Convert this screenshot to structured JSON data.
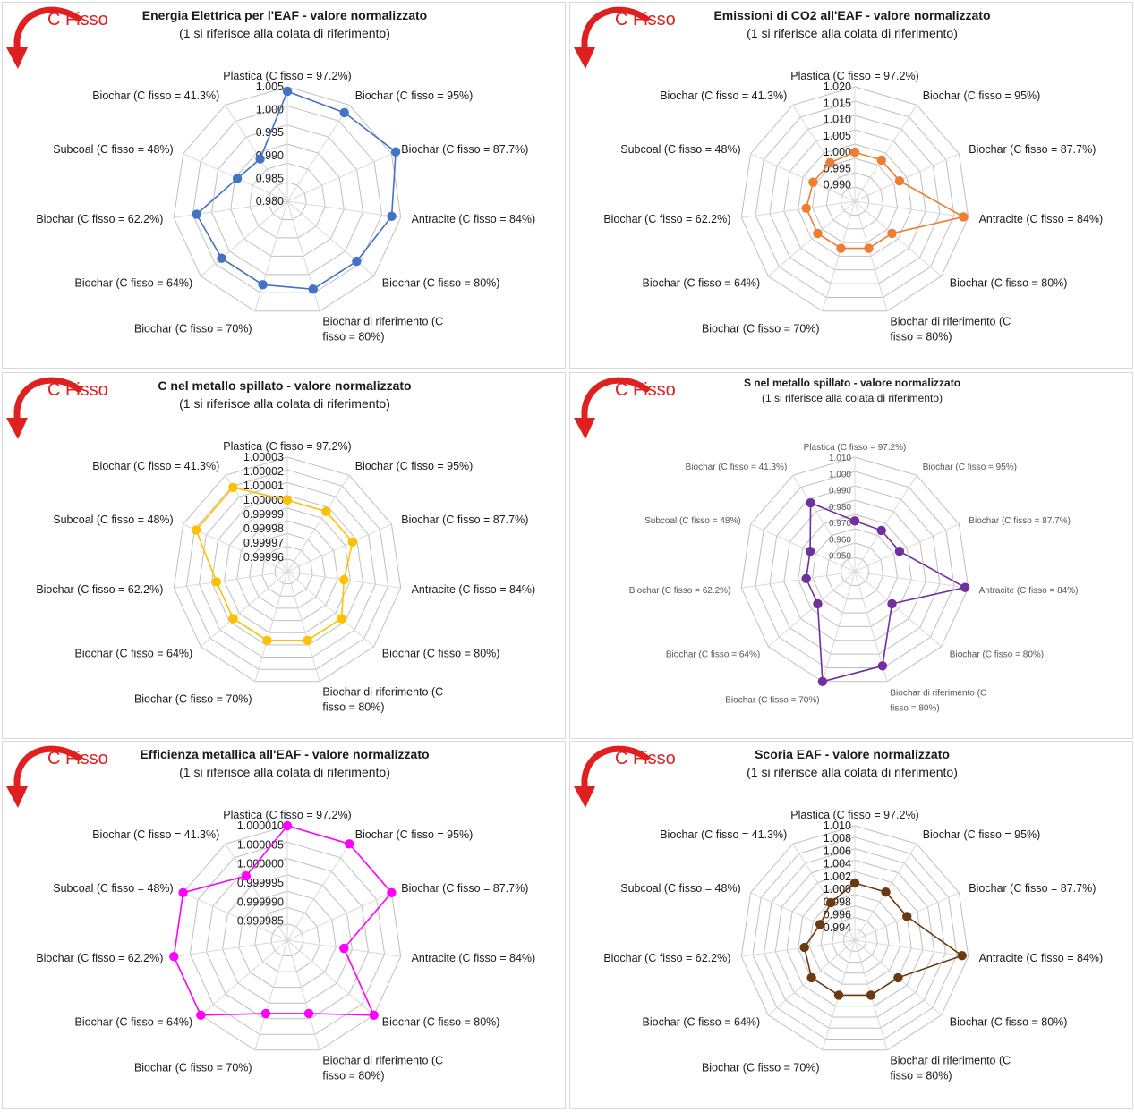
{
  "common": {
    "corner_label": "C Fisso",
    "subtitle": "(1 si riferisce alla colata di riferimento)",
    "categories": [
      "Plastica (C fisso = 97.2%)",
      "Biochar (C fisso = 95%)",
      "Biochar (C fisso = 87.7%)",
      "Antracite (C fisso = 84%)",
      "Biochar (C fisso = 80%)",
      "Biochar di riferimento (C fisso = 80%)",
      "Biochar (C fisso = 70%)",
      "Biochar (C fisso = 64%)",
      "Biochar (C fisso = 62.2%)",
      "Subcoal (C fisso = 48%)",
      "Biochar (C fisso = 41.3%)"
    ]
  },
  "chart_data": [
    {
      "type": "radar",
      "title": "Energia Elettrica per l'EAF  - valore normalizzato",
      "subtitle": "(1 si riferisce alla colata di riferimento)",
      "color": "#4472c4",
      "tick_labels": [
        "0.980",
        "0.985",
        "0.990",
        "0.995",
        "1.000",
        "1.005"
      ],
      "rmin": 0.98,
      "rmax": 1.005,
      "values": [
        1.004,
        1.003,
        1.006,
        1.003,
        1.0,
        1.0,
        0.999,
        0.999,
        1.0,
        0.992,
        0.991
      ]
    },
    {
      "type": "radar",
      "title": "Emissioni di CO2 all'EAF - valore normalizzato",
      "subtitle": "(1 si riferisce alla colata di riferimento)",
      "color": "#ed7d31",
      "tick_labels": [
        "0.990",
        "0.995",
        "1.000",
        "1.005",
        "1.010",
        "1.015",
        "1.020"
      ],
      "rmin": 0.985,
      "rmax": 1.02,
      "values": [
        1.0,
        1.0,
        1.0,
        1.0185,
        1.0,
        1.0,
        1.0,
        1.0,
        1.0,
        0.999,
        0.999
      ]
    },
    {
      "type": "radar",
      "title": "C nel metallo spillato - valore normalizzato",
      "subtitle": "(1 si riferisce alla colata di riferimento)",
      "color": "#ffc000",
      "tick_labels": [
        "0.99996",
        "0.99997",
        "0.99998",
        "0.99999",
        "1.00000",
        "1.00001",
        "1.00002",
        "1.00003"
      ],
      "rmin": 0.99995,
      "rmax": 1.00003,
      "values": [
        1.0,
        1.0,
        1.0,
        0.99999,
        1.0,
        1.0,
        1.0,
        1.0,
        1.0,
        1.00002,
        1.00002
      ]
    },
    {
      "type": "radar",
      "title": "S nel metallo spillato - valore normalizzato",
      "subtitle": "(1 si riferisce alla colata di riferimento)",
      "color": "#7030a0",
      "tick_labels": [
        "0.950",
        "0.960",
        "0.970",
        "0.980",
        "0.990",
        "1.000",
        "1.010"
      ],
      "rmin": 0.94,
      "rmax": 1.01,
      "values": [
        0.971,
        0.97,
        0.97,
        1.008,
        0.97,
        1.0,
        1.01,
        0.97,
        0.97,
        0.97,
        0.99
      ]
    },
    {
      "type": "radar",
      "title": "Efficienza metallica all'EAF - valore normalizzato",
      "subtitle": "(1 si riferisce alla colata di riferimento)",
      "color": "#ff00ff",
      "tick_labels": [
        "0.999985",
        "0.999990",
        "0.999995",
        "1.000000",
        "1.000005",
        "1.000010"
      ],
      "rmin": 0.99998,
      "rmax": 1.00001,
      "values": [
        1.00001,
        1.00001,
        1.00001,
        0.999995,
        1.00001,
        1.0,
        1.0,
        1.00001,
        1.00001,
        1.00001,
        1.0
      ]
    },
    {
      "type": "radar",
      "title": "Scoria EAF - valore normalizzato",
      "subtitle": "(1 si riferisce alla colata di riferimento)",
      "color": "#6b3a10",
      "tick_labels": [
        "0.994",
        "0.996",
        "0.998",
        "1.000",
        "1.002",
        "1.004",
        "1.006",
        "1.008",
        "1.010"
      ],
      "rmin": 0.992,
      "rmax": 1.01,
      "values": [
        1.001,
        1.001,
        1.001,
        1.009,
        1.001,
        1.001,
        1.001,
        1.001,
        1.0,
        0.998,
        0.999
      ]
    }
  ]
}
